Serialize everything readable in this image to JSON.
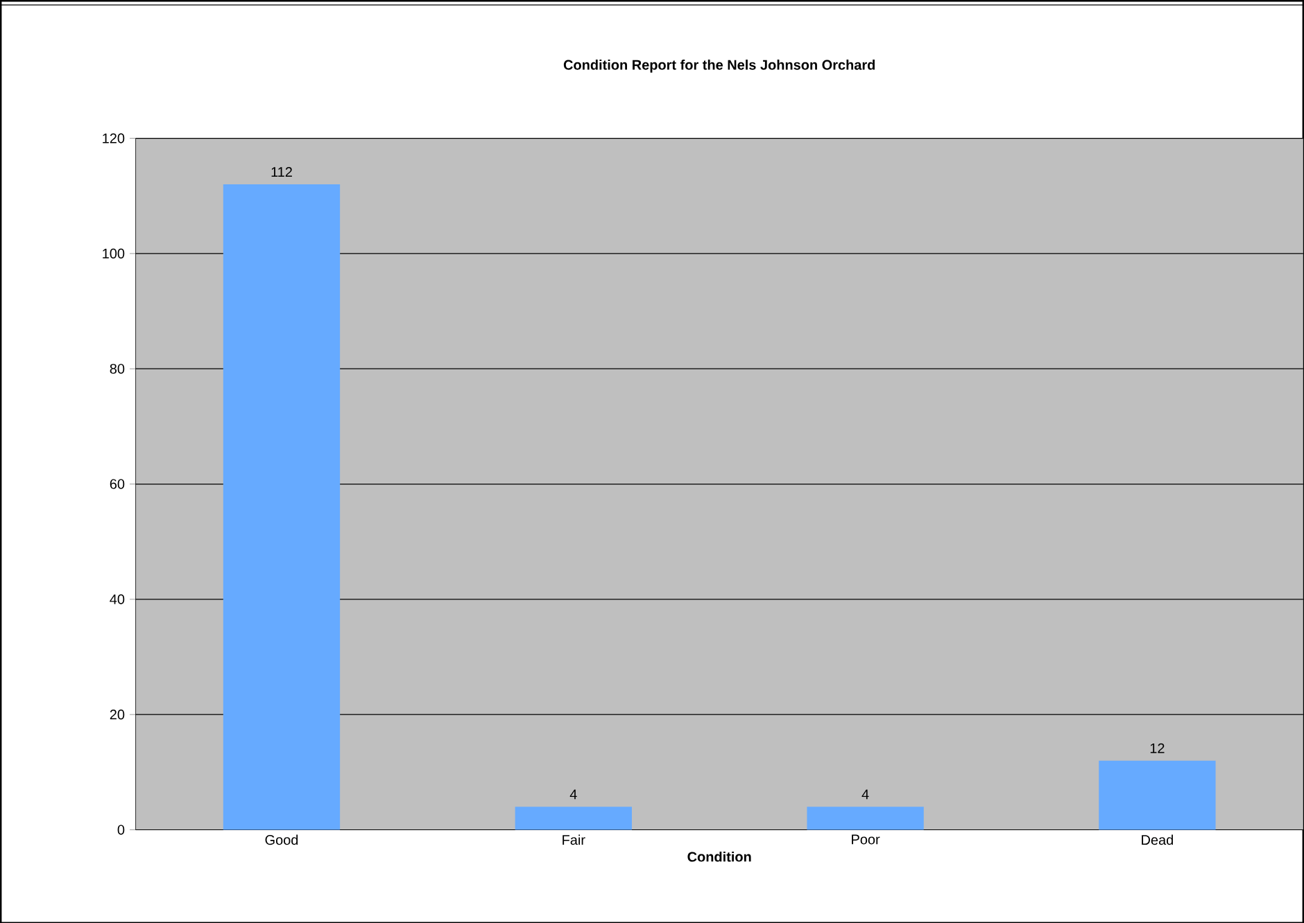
{
  "chart_data": {
    "type": "bar",
    "title": "Condition Report for the Nels Johnson Orchard",
    "xlabel": "Condition",
    "categories": [
      "Good",
      "Fair",
      "Poor",
      "Dead"
    ],
    "values": [
      112,
      4,
      4,
      12
    ],
    "color": "#66aaff",
    "ylim": [
      0,
      120
    ],
    "yticks": [
      0,
      20,
      40,
      60,
      80,
      100,
      120
    ],
    "grid": "y",
    "data_labels": true
  }
}
